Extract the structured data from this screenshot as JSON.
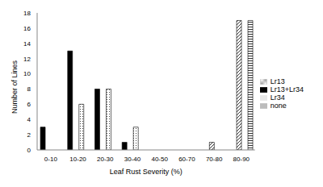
{
  "chart_data": {
    "type": "bar",
    "xlabel": "Leaf Rust Severity (%)",
    "ylabel": "Number of Lines",
    "categories": [
      "0-10",
      "10-20",
      "20-30",
      "30-40",
      "40-50",
      "60-70",
      "70-80",
      "80-90"
    ],
    "series": [
      {
        "name": "Lr13+Lr34",
        "color": "#000000",
        "values": [
          3,
          13,
          8,
          1,
          0,
          0,
          0,
          0
        ]
      },
      {
        "name": "Lr13",
        "color": "#000000",
        "values": [
          0,
          0,
          0,
          0,
          0,
          0,
          1,
          17
        ]
      },
      {
        "name": "Lr34",
        "color": "#000000",
        "values": [
          0,
          6,
          8,
          3,
          0,
          0,
          0,
          0
        ]
      },
      {
        "name": "none",
        "color": "#000000",
        "values": [
          0,
          0,
          0,
          0,
          0,
          0,
          0,
          17
        ]
      }
    ],
    "ylim": [
      0,
      18
    ],
    "yticks": [
      0,
      2,
      4,
      6,
      8,
      10,
      12,
      14,
      16,
      18
    ],
    "legend": "right"
  }
}
